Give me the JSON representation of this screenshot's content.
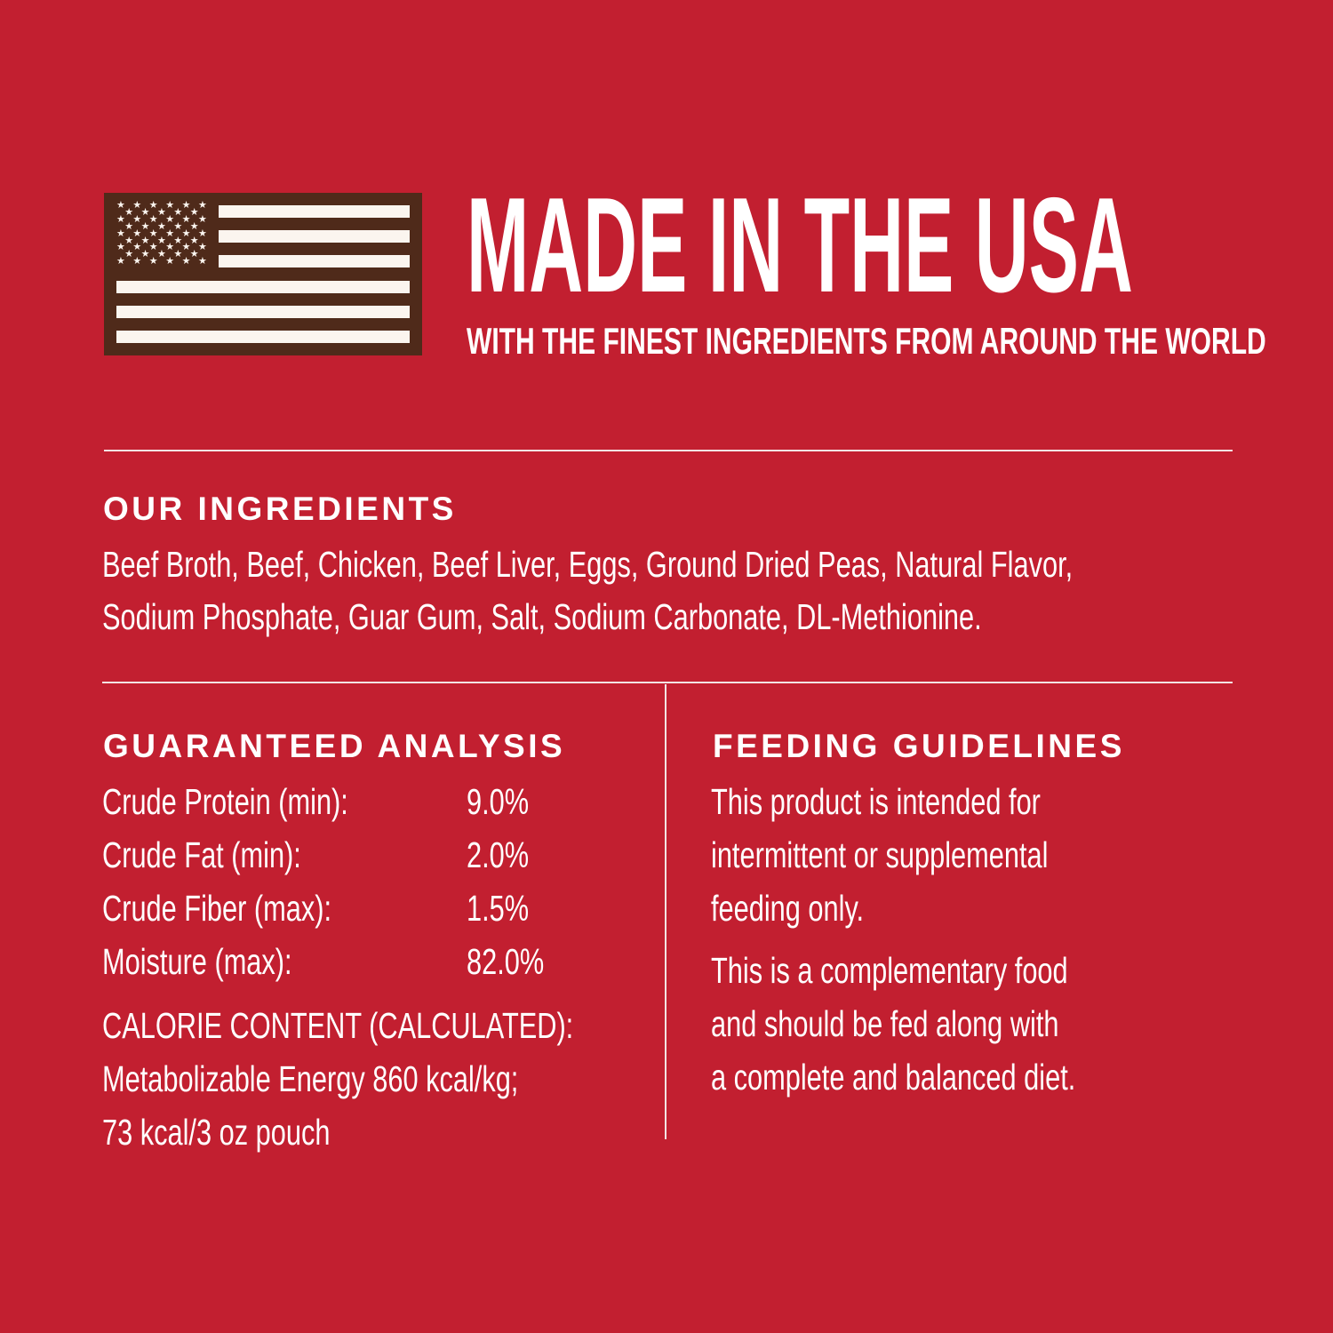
{
  "colors": {
    "background": "#c21f30",
    "flag": "#4f2a1a",
    "text": "#ffffff"
  },
  "flag_icon": "american-flag-icon",
  "header": {
    "title": "MADE IN THE USA",
    "subtitle": "WITH THE FINEST INGREDIENTS FROM AROUND THE WORLD"
  },
  "ingredients": {
    "heading": "OUR INGREDIENTS",
    "lines": [
      "Beef Broth, Beef, Chicken, Beef Liver, Eggs, Ground Dried Peas, Natural Flavor,",
      "Sodium Phosphate, Guar Gum, Salt, Sodium Carbonate, DL-Methionine."
    ]
  },
  "analysis": {
    "heading": "GUARANTEED ANALYSIS",
    "rows": [
      {
        "label": "Crude Protein (min):",
        "value": "9.0%"
      },
      {
        "label": "Crude Fat (min):",
        "value": "2.0%"
      },
      {
        "label": "Crude Fiber (max):",
        "value": "1.5%"
      },
      {
        "label": "Moisture (max):",
        "value": "82.0%"
      }
    ],
    "calorie_lines": [
      "CALORIE CONTENT (CALCULATED):",
      "Metabolizable Energy 860 kcal/kg;",
      "73 kcal/3 oz pouch"
    ]
  },
  "feeding": {
    "heading": "FEEDING GUIDELINES",
    "paragraph1": [
      "This product is intended for",
      "intermittent or supplemental",
      "feeding only."
    ],
    "paragraph2": [
      "This is a complementary food",
      "and should be fed along with",
      "a complete and balanced diet."
    ]
  }
}
